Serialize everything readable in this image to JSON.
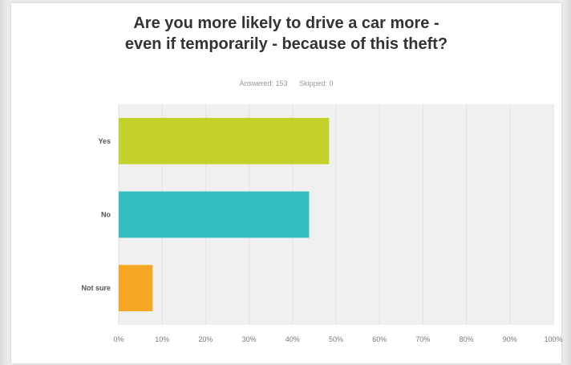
{
  "title_line1": "Are you more likely to drive a car more -",
  "title_line2": "even if temporarily - because of this theft?",
  "answered": "Answered: 153",
  "skipped": "Skipped: 0",
  "chart_data": {
    "type": "bar",
    "orientation": "horizontal",
    "categories": [
      "Yes",
      "No",
      "Not sure"
    ],
    "values": [
      48.4,
      43.8,
      7.8
    ],
    "colors": [
      "#c3d22a",
      "#33bfbf",
      "#f5a623"
    ],
    "xlim": [
      0,
      100
    ],
    "xticks": [
      "0%",
      "10%",
      "20%",
      "30%",
      "40%",
      "50%",
      "60%",
      "70%",
      "80%",
      "90%",
      "100%"
    ],
    "grid": true,
    "plot_background": "#f0f0f0"
  }
}
